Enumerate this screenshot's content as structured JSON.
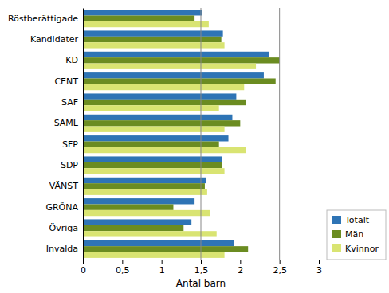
{
  "chart_data": {
    "type": "bar",
    "orientation": "horizontal",
    "categories": [
      "Röstberättigade",
      "Kandidater",
      "KD",
      "CENT",
      "SAF",
      "SAML",
      "SFP",
      "SDP",
      "VÄNST",
      "GRÖNA",
      "Övriga",
      "Invalda"
    ],
    "series": [
      {
        "name": "Totalt",
        "color": "#2E74B5",
        "values": [
          1.52,
          1.78,
          2.37,
          2.3,
          1.95,
          1.9,
          1.85,
          1.77,
          1.57,
          1.42,
          1.38,
          1.92
        ]
      },
      {
        "name": "Män",
        "color": "#6B8C21",
        "values": [
          1.42,
          1.76,
          2.5,
          2.45,
          2.07,
          2.0,
          1.73,
          1.77,
          1.55,
          1.15,
          1.28,
          2.1
        ]
      },
      {
        "name": "Kvinnor",
        "color": "#D9E472",
        "values": [
          1.6,
          1.8,
          2.2,
          2.05,
          1.73,
          1.8,
          2.07,
          1.8,
          1.58,
          1.62,
          1.7,
          1.8
        ]
      }
    ],
    "xlabel": "Antal barn",
    "xlim": [
      0,
      3
    ],
    "xticks": [
      0,
      {
        "value": 0.5,
        "label": "0,5"
      },
      1,
      {
        "value": 1.5,
        "label": "1,5"
      },
      2,
      {
        "value": 2.5,
        "label": "2,5"
      },
      3
    ],
    "vlines": [
      1.5,
      2.5
    ],
    "grid": false,
    "legend": "lower right"
  }
}
